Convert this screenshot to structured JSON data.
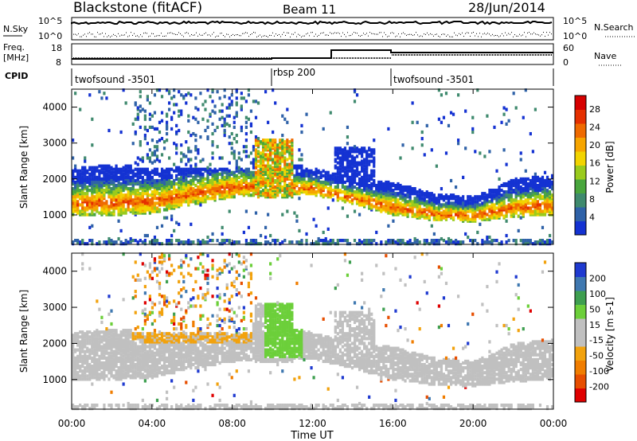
{
  "header": {
    "station": "Blackstone (fitACF)",
    "beam": "Beam 11",
    "date": "28/Jun/2014"
  },
  "noise_panel": {
    "left_label": "N.Sky",
    "right_label": "N.Search",
    "ticks": [
      "10^5",
      "10^0"
    ],
    "right_ticks": [
      "10^5",
      "10^0"
    ]
  },
  "freq_panel": {
    "left_label_1": "Freq.",
    "left_label_2": "[MHz]",
    "left_ticks": [
      "18",
      "8"
    ],
    "right_label": "Nave",
    "right_ticks": [
      "60",
      "0"
    ]
  },
  "cpid_panel": {
    "label": "CPID",
    "modes": [
      {
        "name": "twofsound -3501",
        "start_hour": 0
      },
      {
        "name": "rbsp 200",
        "start_hour": 10
      },
      {
        "name": "twofsound -3501",
        "start_hour": 16
      }
    ]
  },
  "chart_data": [
    {
      "type": "heatmap",
      "title": "",
      "xlabel": "Time UT",
      "ylabel": "Slant Range [km]",
      "x_ticks": [
        "00:00",
        "04:00",
        "08:00",
        "12:00",
        "16:00",
        "20:00",
        "00:00"
      ],
      "xlim": [
        0,
        24
      ],
      "y_ticks": [
        "1000",
        "2000",
        "3000",
        "4000"
      ],
      "ylim": [
        180,
        4500
      ],
      "colorbar": {
        "label": "Power [dB]",
        "ticks": [
          "4",
          "8",
          "12",
          "16",
          "20",
          "24",
          "28"
        ],
        "range": [
          0,
          30
        ],
        "colors": [
          "#1432d2",
          "#2f62a8",
          "#3f8a6e",
          "#49a63d",
          "#9acb1d",
          "#f2d400",
          "#f6a500",
          "#ef6a00",
          "#e53000",
          "#d60000"
        ]
      },
      "bands": [
        {
          "ranges_km": [
            [
              1300,
              1150
            ],
            [
              1200,
              1050
            ],
            [
              1400,
              1250
            ],
            [
              1700,
              1300
            ],
            [
              1900,
              1500
            ],
            [
              2100,
              1800
            ],
            [
              2100,
              1800
            ],
            [
              2000,
              1650
            ],
            [
              2200,
              1500
            ]
          ],
          "hours": [
            0,
            2,
            4,
            6,
            8,
            10,
            12,
            14,
            16
          ]
        }
      ]
    },
    {
      "type": "heatmap",
      "title": "",
      "xlabel": "Time UT",
      "ylabel": "Slant Range [km]",
      "x_ticks": [
        "00:00",
        "04:00",
        "08:00",
        "12:00",
        "16:00",
        "20:00",
        "00:00"
      ],
      "xlim": [
        0,
        24
      ],
      "y_ticks": [
        "1000",
        "2000",
        "3000",
        "4000"
      ],
      "ylim": [
        180,
        4500
      ],
      "colorbar": {
        "label": "Velocity [m s-1]",
        "ticks": [
          "200",
          "100",
          "50",
          "15",
          "-15",
          "-50",
          "-100",
          "-200"
        ],
        "colors": [
          "#1f3ad0",
          "#3f78b0",
          "#3e9f50",
          "#6ccf3a",
          "#c0c0c0",
          "#c0c0c0",
          "#f2a20d",
          "#f07d00",
          "#e74e00",
          "#df0000"
        ]
      }
    }
  ]
}
